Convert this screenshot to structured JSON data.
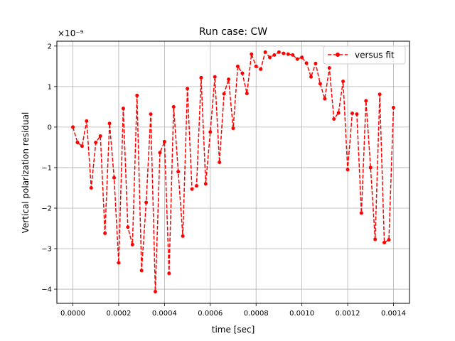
{
  "chart_data": {
    "type": "line",
    "title": "Run case: CW",
    "xlabel": "time [sec]",
    "ylabel": "Vertical polarization residual",
    "y_scale_label": "×10⁻⁹",
    "y_multiplier": 1e-09,
    "xlim": [
      -7e-05,
      0.00147
    ],
    "ylim": [
      -4.35,
      2.12
    ],
    "x_ticks": [
      0.0,
      0.0002,
      0.0004,
      0.0006,
      0.0008,
      0.001,
      0.0012,
      0.0014
    ],
    "x_tick_labels": [
      "0.0000",
      "0.0002",
      "0.0004",
      "0.0006",
      "0.0008",
      "0.0010",
      "0.0012",
      "0.0014"
    ],
    "y_ticks": [
      2,
      1,
      0,
      -1,
      -2,
      -3,
      -4
    ],
    "y_tick_labels": [
      "2",
      "1",
      "0",
      "−1",
      "−2",
      "−3",
      "−4"
    ],
    "grid": true,
    "legend_position": "top-right",
    "color": "#ff0000",
    "line_style": "dashed",
    "marker": "circle",
    "series": [
      {
        "name": "versus fit",
        "x": [
          0.0,
          2e-05,
          4e-05,
          6e-05,
          8e-05,
          0.0001,
          0.00012,
          0.00014,
          0.00016,
          0.00018,
          0.0002,
          0.00022,
          0.00024,
          0.00026,
          0.00028,
          0.0003,
          0.00032,
          0.00034,
          0.00036,
          0.00038,
          0.0004,
          0.00042,
          0.00044,
          0.00046,
          0.00048,
          0.0005,
          0.00052,
          0.00054,
          0.00056,
          0.00058,
          0.0006,
          0.00062,
          0.00064,
          0.00066,
          0.00068,
          0.0007,
          0.00072,
          0.00074,
          0.00076,
          0.00078,
          0.0008,
          0.00082,
          0.00084,
          0.00086,
          0.00088,
          0.0009,
          0.00092,
          0.00094,
          0.00096,
          0.00098,
          0.001,
          0.00102,
          0.00104,
          0.00106,
          0.00108,
          0.0011,
          0.00112,
          0.00114,
          0.00116,
          0.00118,
          0.0012,
          0.00122,
          0.00124,
          0.00126,
          0.00128,
          0.0013,
          0.00132,
          0.00134,
          0.00136,
          0.00138,
          0.0014
        ],
        "values": [
          0.0,
          -0.38,
          -0.47,
          0.15,
          -1.5,
          -0.38,
          -0.22,
          -2.62,
          0.09,
          -1.25,
          -3.35,
          0.46,
          -2.47,
          -2.9,
          0.78,
          -3.54,
          -1.86,
          0.32,
          -4.06,
          -0.63,
          -0.36,
          -3.61,
          0.5,
          -1.1,
          -2.69,
          0.95,
          -1.53,
          -1.45,
          1.22,
          -1.4,
          -0.12,
          1.24,
          -0.87,
          0.82,
          1.18,
          -0.03,
          1.5,
          1.33,
          0.83,
          1.8,
          1.5,
          1.43,
          1.85,
          1.72,
          1.78,
          1.85,
          1.82,
          1.8,
          1.78,
          1.68,
          1.72,
          1.58,
          1.24,
          1.57,
          1.07,
          0.7,
          1.46,
          0.2,
          0.35,
          1.13,
          -1.05,
          0.34,
          0.32,
          -2.12,
          0.65,
          -1.0,
          -2.77,
          0.81,
          -2.85,
          -2.78,
          0.48
        ]
      }
    ]
  }
}
